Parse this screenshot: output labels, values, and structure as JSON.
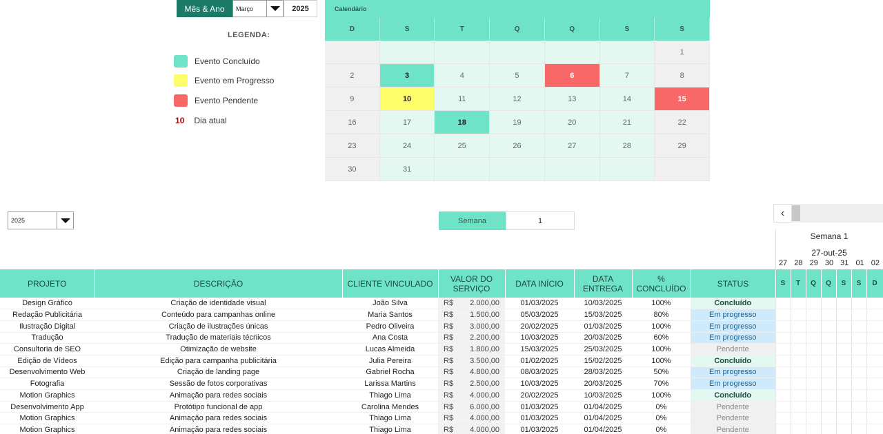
{
  "controls": {
    "mes_ano_label": "Mês & Ano",
    "month": "Março",
    "year": "2025"
  },
  "legend": {
    "title": "LEGENDA:",
    "items": [
      {
        "label": "Evento Concluído",
        "color": "#6fe3c7"
      },
      {
        "label": "Evento em Progresso",
        "color": "#fdfd6a"
      },
      {
        "label": "Evento Pendente",
        "color": "#f86868"
      }
    ],
    "today_number": "10",
    "today_label": "Dia atual"
  },
  "calendar": {
    "title": "Calendário",
    "dow": [
      "D",
      "S",
      "T",
      "Q",
      "Q",
      "S",
      "S"
    ],
    "weeks": [
      [
        "",
        "",
        "",
        "",
        "",
        "",
        "1"
      ],
      [
        "2",
        "3",
        "4",
        "5",
        "6",
        "7",
        "8"
      ],
      [
        "9",
        "10",
        "11",
        "12",
        "13",
        "14",
        "15"
      ],
      [
        "16",
        "17",
        "18",
        "19",
        "20",
        "21",
        "22"
      ],
      [
        "23",
        "24",
        "25",
        "26",
        "27",
        "28",
        "29"
      ],
      [
        "30",
        "31",
        "",
        "",
        "",
        "",
        ""
      ]
    ],
    "events": {
      "3": "done",
      "6": "pend",
      "10": "prog",
      "15": "pend",
      "18": "done"
    }
  },
  "filters": {
    "year": "2025",
    "semana_label": "Semana",
    "semana_value": "1"
  },
  "gantt": {
    "week_title": "Semana 1",
    "date": "27-out-25",
    "day_numbers": [
      "27",
      "28",
      "29",
      "30",
      "31",
      "01",
      "02"
    ],
    "day_letters": [
      "S",
      "T",
      "Q",
      "Q",
      "S",
      "S",
      "D"
    ]
  },
  "table": {
    "headers": [
      "PROJETO",
      "DESCRIÇÃO",
      "CLIENTE VINCULADO",
      "VALOR DO SERVIÇO",
      "DATA INÍCIO",
      "DATA ENTREGA",
      "% CONCLUÍDO",
      "STATUS"
    ],
    "currency": "R$",
    "rows": [
      {
        "projeto": "Design Gráfico",
        "descricao": "Criação de identidade visual",
        "cliente": "João Silva",
        "valor": "2.000,00",
        "inicio": "01/03/2025",
        "entrega": "10/03/2025",
        "pct": "100%",
        "status": "Concluído"
      },
      {
        "projeto": "Redação Publicitária",
        "descricao": "Conteúdo para campanhas online",
        "cliente": "Maria Santos",
        "valor": "1.500,00",
        "inicio": "05/03/2025",
        "entrega": "15/03/2025",
        "pct": "80%",
        "status": "Em progresso"
      },
      {
        "projeto": "Ilustração Digital",
        "descricao": "Criação de ilustrações únicas",
        "cliente": "Pedro Oliveira",
        "valor": "3.000,00",
        "inicio": "20/02/2025",
        "entrega": "01/03/2025",
        "pct": "100%",
        "status": "Em progresso"
      },
      {
        "projeto": "Tradução",
        "descricao": "Tradução de materiais técnicos",
        "cliente": "Ana Costa",
        "valor": "2.200,00",
        "inicio": "10/03/2025",
        "entrega": "20/03/2025",
        "pct": "60%",
        "status": "Em progresso"
      },
      {
        "projeto": "Consultoria de SEO",
        "descricao": "Otimização de website",
        "cliente": "Lucas Almeida",
        "valor": "1.800,00",
        "inicio": "15/03/2025",
        "entrega": "25/03/2025",
        "pct": "100%",
        "status": "Pendente"
      },
      {
        "projeto": "Edição de Vídeos",
        "descricao": "Edição para campanha publicitária",
        "cliente": "Julia Pereira",
        "valor": "3.500,00",
        "inicio": "01/02/2025",
        "entrega": "15/02/2025",
        "pct": "100%",
        "status": "Concluído"
      },
      {
        "projeto": "Desenvolvimento Web",
        "descricao": "Criação de landing page",
        "cliente": "Gabriel Rocha",
        "valor": "4.800,00",
        "inicio": "08/03/2025",
        "entrega": "28/03/2025",
        "pct": "50%",
        "status": "Em progresso"
      },
      {
        "projeto": "Fotografia",
        "descricao": "Sessão de fotos corporativas",
        "cliente": "Larissa Martins",
        "valor": "2.500,00",
        "inicio": "10/03/2025",
        "entrega": "20/03/2025",
        "pct": "70%",
        "status": "Em progresso"
      },
      {
        "projeto": "Motion Graphics",
        "descricao": "Animação para redes sociais",
        "cliente": "Thiago Lima",
        "valor": "4.000,00",
        "inicio": "20/02/2025",
        "entrega": "10/03/2025",
        "pct": "100%",
        "status": "Concluído"
      },
      {
        "projeto": "Desenvolvimento App",
        "descricao": "Protótipo funcional de app",
        "cliente": "Carolina Mendes",
        "valor": "6.000,00",
        "inicio": "01/03/2025",
        "entrega": "01/04/2025",
        "pct": "0%",
        "status": "Pendente"
      },
      {
        "projeto": "Motion Graphics",
        "descricao": "Animação para redes sociais",
        "cliente": "Thiago Lima",
        "valor": "4.000,00",
        "inicio": "01/03/2025",
        "entrega": "01/04/2025",
        "pct": "0%",
        "status": "Pendente"
      },
      {
        "projeto": "Motion Graphics",
        "descricao": "Animação para redes sociais",
        "cliente": "Thiago Lima",
        "valor": "4.000,00",
        "inicio": "01/03/2025",
        "entrega": "01/04/2025",
        "pct": "0%",
        "status": "Pendente"
      }
    ]
  }
}
